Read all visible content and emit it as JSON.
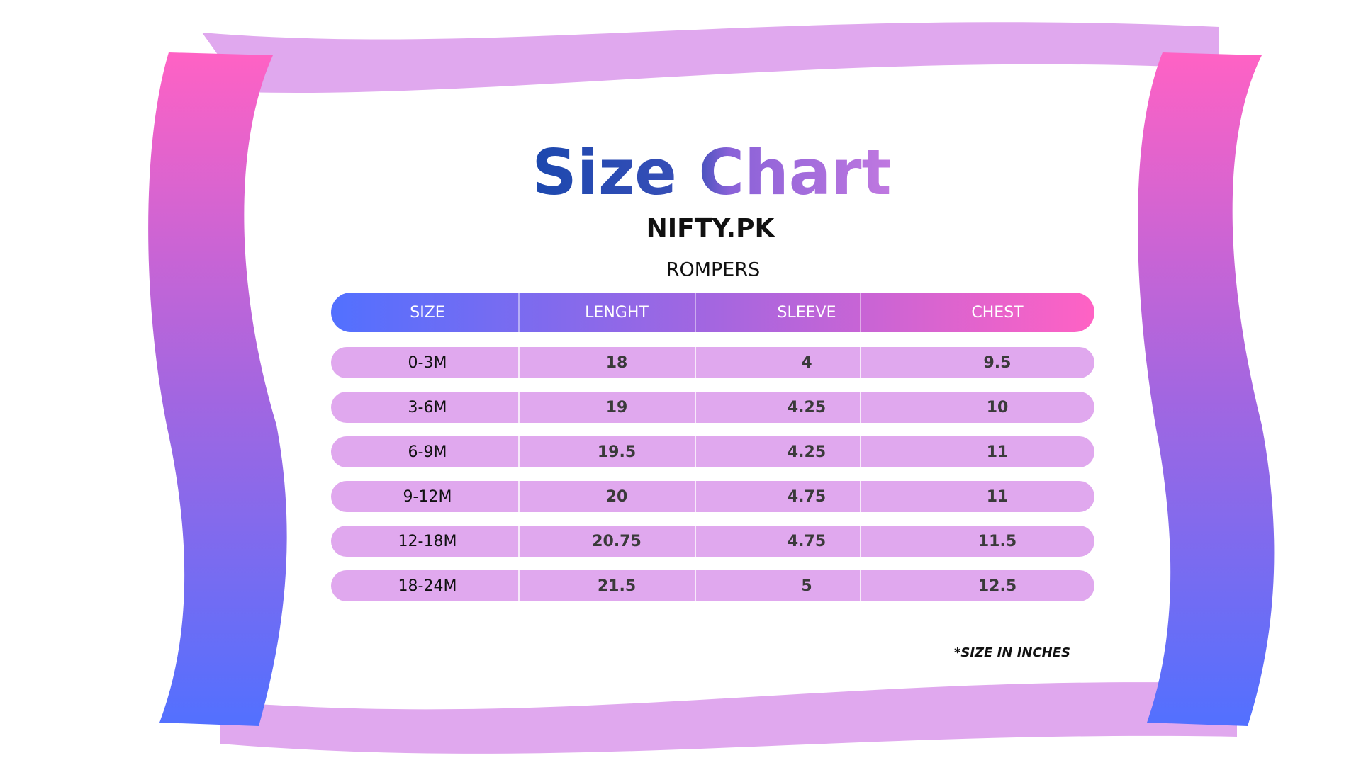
{
  "header": {
    "title": "Size Chart",
    "brand": "NIFTY.PK",
    "subtitle": "ROMPERS"
  },
  "table": {
    "columns": [
      "SIZE",
      "LENGHT",
      "SLEEVE",
      "CHEST"
    ],
    "rows": [
      [
        "0-3M",
        "18",
        "4",
        "9.5"
      ],
      [
        "3-6M",
        "19",
        "4.25",
        "10"
      ],
      [
        "6-9M",
        "19.5",
        "4.25",
        "11"
      ],
      [
        "9-12M",
        "20",
        "4.75",
        "11"
      ],
      [
        "12-18M",
        "20.75",
        "4.75",
        "11.5"
      ],
      [
        "18-24M",
        "21.5",
        "5",
        "12.5"
      ]
    ]
  },
  "footnote": "*SIZE IN INCHES"
}
